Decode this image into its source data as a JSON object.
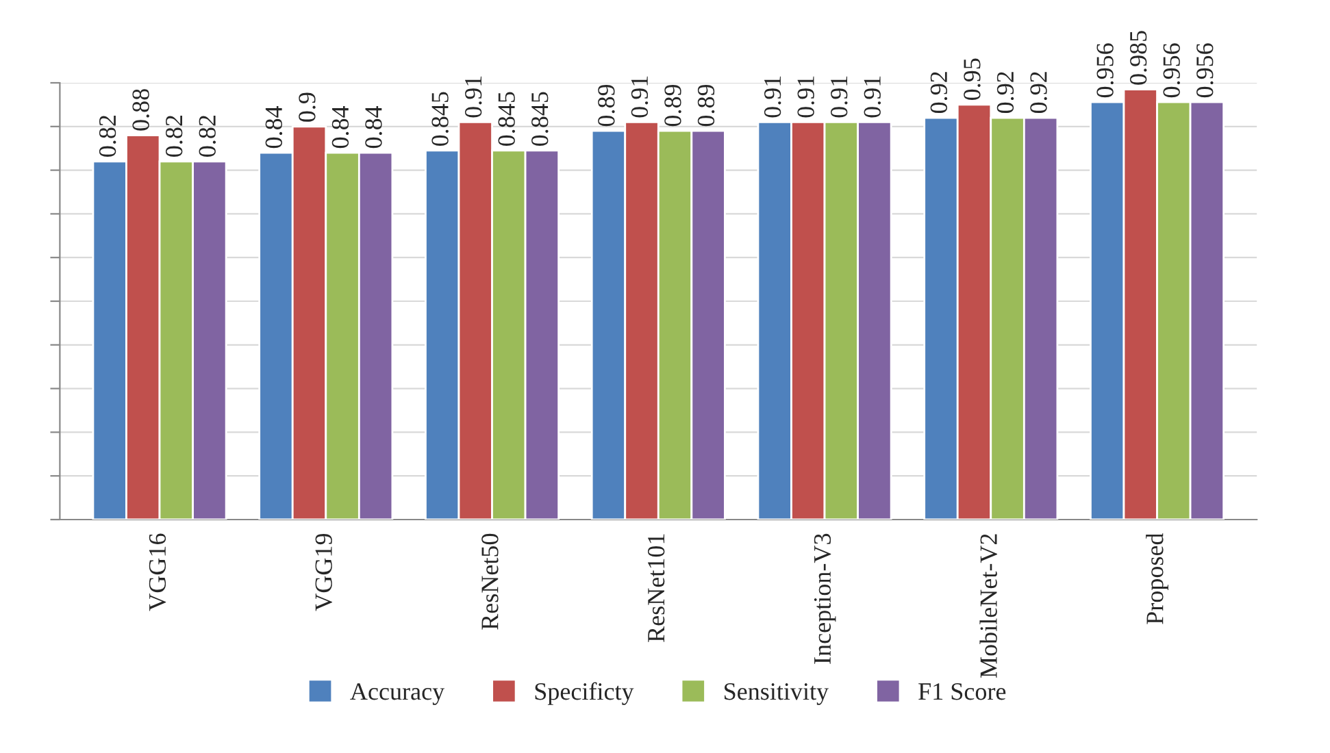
{
  "chart_data": {
    "type": "bar",
    "categories": [
      "VGG16",
      "VGG19",
      "ResNet50",
      "ResNet101",
      "Inception-V3",
      "MobileNet-V2",
      "Proposed"
    ],
    "series": [
      {
        "name": "Accuracy",
        "color": "#4f81bd",
        "values": [
          0.82,
          0.84,
          0.845,
          0.89,
          0.91,
          0.92,
          0.956
        ]
      },
      {
        "name": "Specificty",
        "color": "#c0504d",
        "values": [
          0.88,
          0.9,
          0.91,
          0.91,
          0.91,
          0.95,
          0.985
        ]
      },
      {
        "name": "Sensitivity",
        "color": "#9bbb59",
        "values": [
          0.82,
          0.84,
          0.845,
          0.89,
          0.91,
          0.92,
          0.956
        ]
      },
      {
        "name": "F1 Score",
        "color": "#8064a2",
        "values": [
          0.82,
          0.84,
          0.845,
          0.89,
          0.91,
          0.92,
          0.956
        ]
      }
    ],
    "ylim": [
      0,
      1
    ],
    "yticks": [
      {
        "value": 0,
        "label": null
      },
      {
        "value": 0.1,
        "label": null
      },
      {
        "value": 0.2,
        "label": null
      },
      {
        "value": 0.3,
        "label": null
      },
      {
        "value": 0.4,
        "label": null
      },
      {
        "value": 0.5,
        "label": null
      },
      {
        "value": 0.6,
        "label": null
      },
      {
        "value": 0.7,
        "label": null
      },
      {
        "value": 0.8,
        "label": null
      },
      {
        "value": 0.9,
        "label": null
      },
      {
        "value": 1,
        "label": null
      }
    ],
    "grid": "y",
    "legend": "bottom",
    "data_labels": true,
    "tick_labels": "x"
  }
}
